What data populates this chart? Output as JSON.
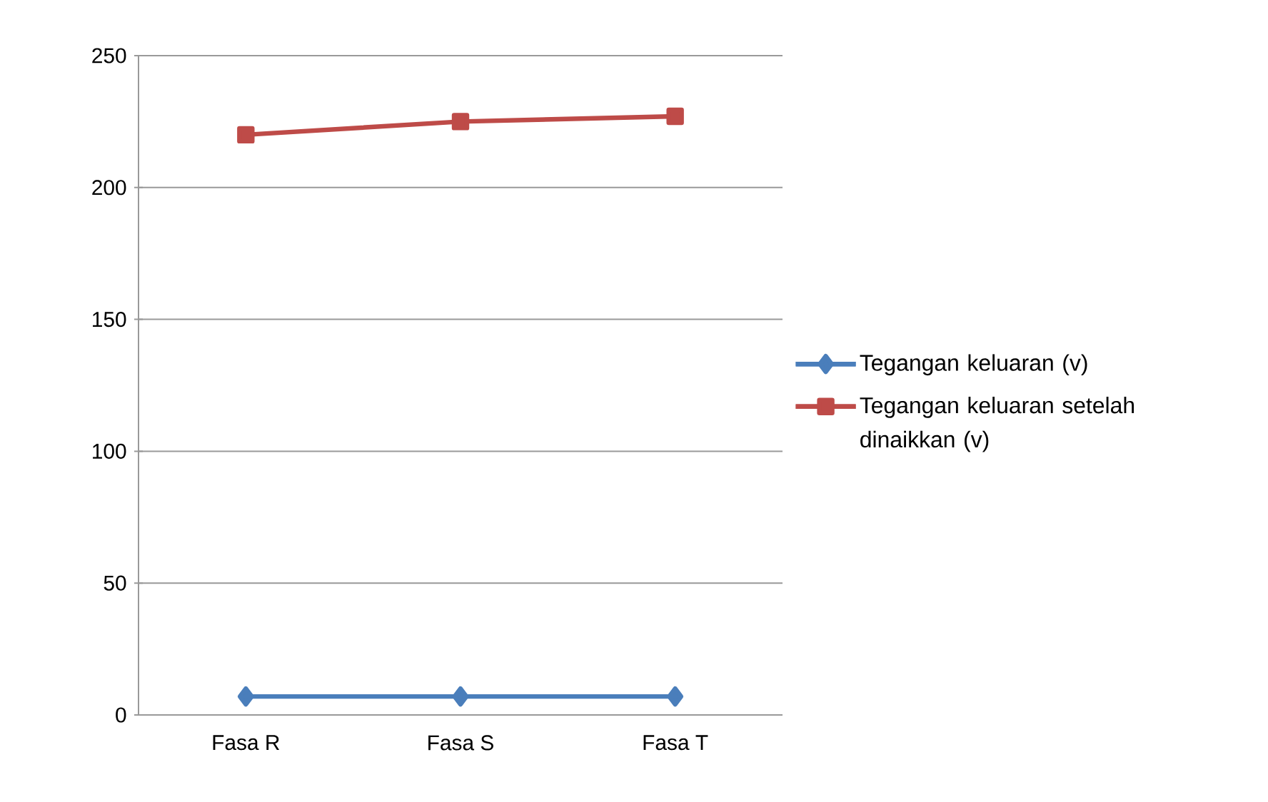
{
  "chart_data": {
    "type": "line",
    "categories": [
      "Fasa R",
      "Fasa S",
      "Fasa T"
    ],
    "series": [
      {
        "name": "Tegangan keluaran (v)",
        "color": "#4a7ebb",
        "marker": "diamond",
        "values": [
          7,
          7,
          7
        ]
      },
      {
        "name": "Tegangan keluaran setelah dinaikkan (v)",
        "color": "#be4b48",
        "marker": "square",
        "values": [
          220,
          225,
          227
        ]
      }
    ],
    "ylim": [
      0,
      250
    ],
    "yticks": [
      0,
      50,
      100,
      150,
      200,
      250
    ],
    "grid": "y",
    "legend": "right",
    "line_style": "solid"
  }
}
